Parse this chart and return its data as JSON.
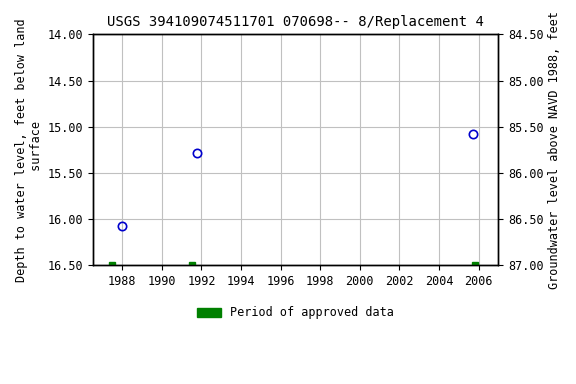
{
  "title": "USGS 394109074511701 070698-- 8/Replacement 4",
  "ylabel_left": "Depth to water level, feet below land\n surface",
  "ylabel_right": "Groundwater level above NAVD 1988, feet",
  "ylim_left": [
    14.0,
    16.5
  ],
  "ylim_right_top": 87.0,
  "ylim_right_bottom": 84.5,
  "xlim": [
    1986.5,
    2007.0
  ],
  "xticks": [
    1988,
    1990,
    1992,
    1994,
    1996,
    1998,
    2000,
    2002,
    2004,
    2006
  ],
  "yticks_left": [
    14.0,
    14.5,
    15.0,
    15.5,
    16.0,
    16.5
  ],
  "yticks_right": [
    87.0,
    86.5,
    86.0,
    85.5,
    85.0,
    84.5
  ],
  "data_x": [
    1988.0,
    1991.8,
    2005.7
  ],
  "data_y": [
    16.08,
    15.28,
    15.08
  ],
  "point_color": "#0000cc",
  "green_x": [
    1987.5,
    1991.5,
    2005.8
  ],
  "green_y": 16.5,
  "green_color": "#008000",
  "background_color": "#ffffff",
  "grid_color": "#c0c0c0",
  "font_family": "monospace",
  "title_fontsize": 10,
  "label_fontsize": 8.5,
  "tick_fontsize": 8.5
}
